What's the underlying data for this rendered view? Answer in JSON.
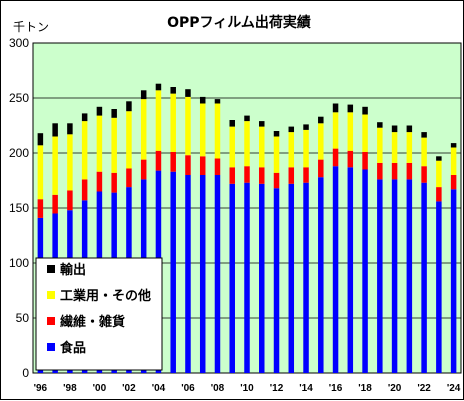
{
  "chart_data": {
    "type": "bar",
    "stacked": true,
    "title": "OPPフィルム出荷実績",
    "ylabel": "千トン",
    "xlabel": "",
    "ylim": [
      0,
      300
    ],
    "yticks": [
      0,
      50,
      100,
      150,
      200,
      250,
      300
    ],
    "grid": true,
    "legend_position": "bottom-left",
    "plot_background": "#ccffcc",
    "categories": [
      "'96",
      "'97",
      "'98",
      "'99",
      "'00",
      "'01",
      "'02",
      "'03",
      "'04",
      "'05",
      "'06",
      "'07",
      "'08",
      "'09",
      "'10",
      "'11",
      "'12",
      "'13",
      "'14",
      "'15",
      "'16",
      "'17",
      "'18",
      "'19",
      "'20",
      "'21",
      "'22",
      "'23",
      "'24"
    ],
    "x_tick_labels": [
      "'96",
      "'98",
      "'00",
      "'02",
      "'04",
      "'06",
      "'08",
      "'10",
      "'12",
      "'14",
      "'16",
      "'18",
      "'20",
      "'22",
      "'24"
    ],
    "series": [
      {
        "name": "食品",
        "color": "#0000ff",
        "values": [
          141,
          145,
          148,
          157,
          165,
          164,
          169,
          176,
          184,
          183,
          180,
          180,
          180,
          172,
          173,
          172,
          168,
          172,
          173,
          178,
          188,
          187,
          185,
          176,
          176,
          176,
          173,
          156,
          167
        ]
      },
      {
        "name": "繊維・雑貨",
        "color": "#ff0000",
        "values": [
          17,
          17,
          18,
          19,
          18,
          18,
          17,
          18,
          18,
          18,
          18,
          17,
          15,
          15,
          15,
          15,
          14,
          15,
          14,
          16,
          16,
          15,
          16,
          15,
          15,
          15,
          15,
          13,
          13
        ]
      },
      {
        "name": "工業用・その他",
        "color": "#ffff00",
        "values": [
          49,
          53,
          51,
          53,
          51,
          50,
          52,
          55,
          55,
          53,
          53,
          48,
          50,
          37,
          41,
          37,
          33,
          32,
          34,
          33,
          33,
          35,
          34,
          32,
          28,
          28,
          26,
          24,
          25
        ]
      },
      {
        "name": "輸出",
        "color": "#000000",
        "values": [
          11,
          12,
          10,
          7,
          8,
          8,
          9,
          8,
          6,
          6,
          7,
          6,
          4,
          6,
          5,
          5,
          5,
          5,
          5,
          6,
          8,
          7,
          7,
          5,
          6,
          6,
          5,
          4,
          4
        ]
      }
    ]
  }
}
